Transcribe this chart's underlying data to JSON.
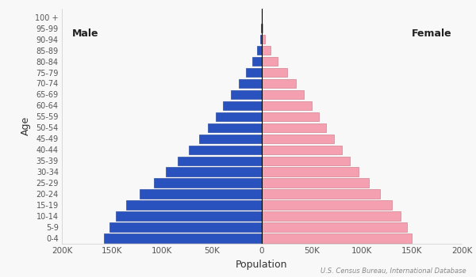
{
  "age_groups": [
    "0-4",
    "5-9",
    "10-14",
    "15-19",
    "20-24",
    "25-29",
    "30-34",
    "35-39",
    "40-44",
    "45-49",
    "50-54",
    "55-59",
    "60-64",
    "65-69",
    "70-74",
    "75-79",
    "80-84",
    "85-89",
    "90-94",
    "95-99",
    "100 +"
  ],
  "male": [
    158000,
    152000,
    146000,
    136000,
    122000,
    108000,
    96000,
    84000,
    73000,
    63000,
    54000,
    46000,
    39000,
    31000,
    23000,
    16000,
    9500,
    4800,
    1600,
    450,
    80
  ],
  "female": [
    150000,
    145000,
    139000,
    130000,
    118000,
    107000,
    97000,
    88000,
    80000,
    72000,
    64000,
    57000,
    50000,
    42000,
    34000,
    25000,
    16000,
    8500,
    3200,
    1000,
    180
  ],
  "male_color": "#2a52be",
  "female_color": "#f4a0b0",
  "male_edge": "#1a3a99",
  "female_edge": "#cc7080",
  "background_color": "#f8f8f8",
  "xlabel": "Population",
  "ylabel": "Age",
  "xlim": 200000,
  "xtick_vals": [
    -200000,
    -150000,
    -100000,
    -50000,
    0,
    50000,
    100000,
    150000,
    200000
  ],
  "xtick_labels": [
    "200K",
    "150K",
    "100K",
    "50K",
    "0",
    "50K",
    "100K",
    "150K",
    "200K"
  ],
  "male_label": "Male",
  "female_label": "Female",
  "source_text": "U.S. Census Bureau, International Database"
}
